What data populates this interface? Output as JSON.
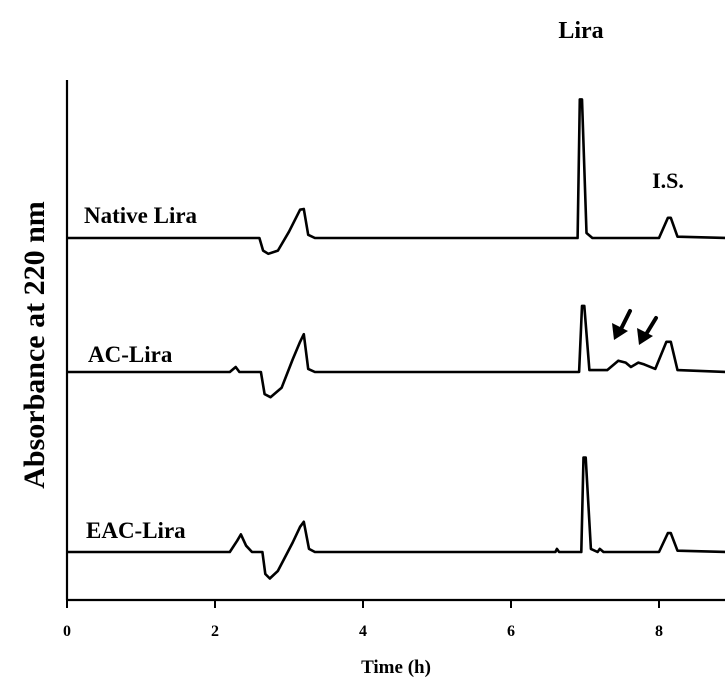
{
  "chart_data": {
    "type": "line",
    "xlabel": "Time (h)",
    "ylabel": "Absorbance at 220 nm",
    "xlim": [
      0,
      8.9
    ],
    "x_ticks": [
      0,
      2,
      4,
      6,
      8
    ],
    "grid": false,
    "legend": "none",
    "annotations": {
      "lira": "Lira",
      "is": "I.S."
    },
    "series": [
      {
        "name": "Native Lira",
        "baseline": 0,
        "points": [
          [
            0,
            0
          ],
          [
            2.6,
            0
          ],
          [
            2.65,
            -0.2
          ],
          [
            2.72,
            -0.25
          ],
          [
            2.85,
            -0.2
          ],
          [
            3.0,
            0.1
          ],
          [
            3.15,
            0.45
          ],
          [
            3.2,
            0.46
          ],
          [
            3.26,
            0.05
          ],
          [
            3.35,
            0
          ],
          [
            5.8,
            0
          ],
          [
            6.9,
            0
          ],
          [
            6.93,
            2.2
          ],
          [
            6.96,
            2.2
          ],
          [
            7.02,
            0.08
          ],
          [
            7.1,
            0
          ],
          [
            8.0,
            0
          ],
          [
            8.12,
            0.32
          ],
          [
            8.16,
            0.32
          ],
          [
            8.25,
            0.02
          ],
          [
            8.9,
            0
          ]
        ]
      },
      {
        "name": "AC-Lira",
        "baseline": 0,
        "points": [
          [
            0,
            0
          ],
          [
            2.2,
            0
          ],
          [
            2.28,
            0.08
          ],
          [
            2.33,
            0
          ],
          [
            2.62,
            0
          ],
          [
            2.67,
            -0.35
          ],
          [
            2.75,
            -0.4
          ],
          [
            2.9,
            -0.25
          ],
          [
            3.05,
            0.2
          ],
          [
            3.15,
            0.48
          ],
          [
            3.2,
            0.6
          ],
          [
            3.26,
            0.05
          ],
          [
            3.35,
            0
          ],
          [
            6.92,
            0
          ],
          [
            6.96,
            1.05
          ],
          [
            6.99,
            1.05
          ],
          [
            7.06,
            0.03
          ],
          [
            7.3,
            0.03
          ],
          [
            7.45,
            0.18
          ],
          [
            7.55,
            0.15
          ],
          [
            7.62,
            0.08
          ],
          [
            7.72,
            0.15
          ],
          [
            7.8,
            0.12
          ],
          [
            7.95,
            0.05
          ],
          [
            8.1,
            0.48
          ],
          [
            8.16,
            0.48
          ],
          [
            8.25,
            0.03
          ],
          [
            8.9,
            0
          ]
        ]
      },
      {
        "name": "EAC-Lira",
        "baseline": 0,
        "points": [
          [
            0,
            0
          ],
          [
            2.2,
            0
          ],
          [
            2.3,
            0.18
          ],
          [
            2.35,
            0.28
          ],
          [
            2.42,
            0.1
          ],
          [
            2.5,
            0
          ],
          [
            2.64,
            0
          ],
          [
            2.68,
            -0.35
          ],
          [
            2.74,
            -0.42
          ],
          [
            2.85,
            -0.3
          ],
          [
            3.05,
            0.15
          ],
          [
            3.15,
            0.4
          ],
          [
            3.2,
            0.48
          ],
          [
            3.27,
            0.05
          ],
          [
            3.35,
            0
          ],
          [
            6.6,
            0
          ],
          [
            6.62,
            0.05
          ],
          [
            6.65,
            0
          ],
          [
            6.95,
            0
          ],
          [
            6.98,
            1.5
          ],
          [
            7.01,
            1.5
          ],
          [
            7.08,
            0.05
          ],
          [
            7.17,
            0
          ],
          [
            7.2,
            0.05
          ],
          [
            7.25,
            0
          ],
          [
            8.0,
            0
          ],
          [
            8.12,
            0.3
          ],
          [
            8.16,
            0.3
          ],
          [
            8.25,
            0.02
          ],
          [
            8.9,
            0
          ]
        ]
      }
    ]
  }
}
